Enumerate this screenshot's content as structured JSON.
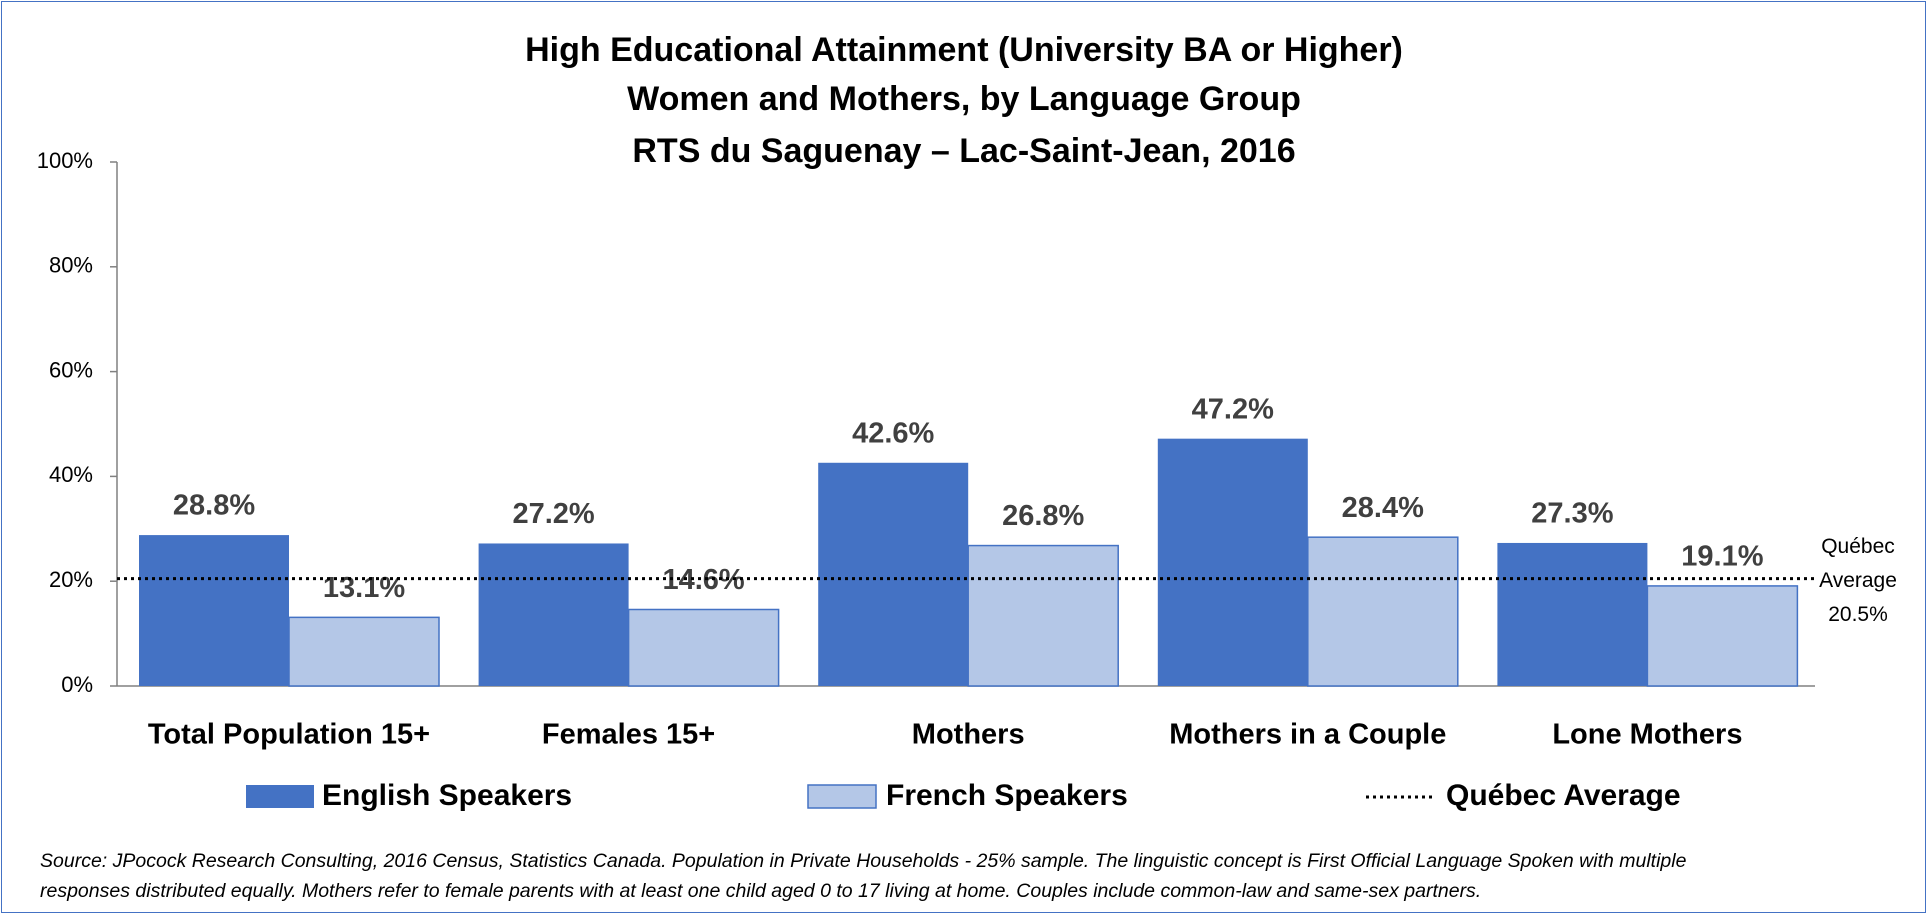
{
  "chart_data": {
    "type": "bar",
    "title": [
      "High Educational Attainment (University BA or Higher)",
      "Women and Mothers, by Language Group",
      "RTS du Saguenay – Lac-Saint-Jean, 2016"
    ],
    "categories": [
      "Total Population 15+",
      "Females 15+",
      "Mothers",
      "Mothers in a Couple",
      "Lone Mothers"
    ],
    "series": [
      {
        "name": "English Speakers",
        "color": "#4472c4",
        "values": [
          28.8,
          27.2,
          42.6,
          47.2,
          27.3
        ],
        "value_labels": [
          "28.8%",
          "27.2%",
          "42.6%",
          "47.2%",
          "27.3%"
        ]
      },
      {
        "name": "French Speakers",
        "color": "#b4c7e7",
        "values": [
          13.1,
          14.6,
          26.8,
          28.4,
          19.1
        ],
        "value_labels": [
          "13.1%",
          "14.6%",
          "26.8%",
          "28.4%",
          "19.1%"
        ]
      }
    ],
    "reference_line": {
      "name": "Québec Average",
      "value": 20.5,
      "value_label": "20.5%"
    },
    "ylim": [
      0,
      100
    ],
    "yticks": [
      {
        "value": 0,
        "label": "0%"
      },
      {
        "value": 20,
        "label": "20%"
      },
      {
        "value": 40,
        "label": "40%"
      },
      {
        "value": 60,
        "label": "60%"
      },
      {
        "value": 80,
        "label": "80%"
      },
      {
        "value": 100,
        "label": "100%"
      }
    ],
    "source": [
      "Source: JPocock Research Consulting, 2016 Census, Statistics Canada. Population in Private Households - 25% sample. The linguistic concept is First Official Language Spoken with multiple",
      "responses distributed equally. Mothers refer to female parents with at least one child aged 0 to 17 living at home. Couples include common-law and same-sex partners."
    ]
  }
}
